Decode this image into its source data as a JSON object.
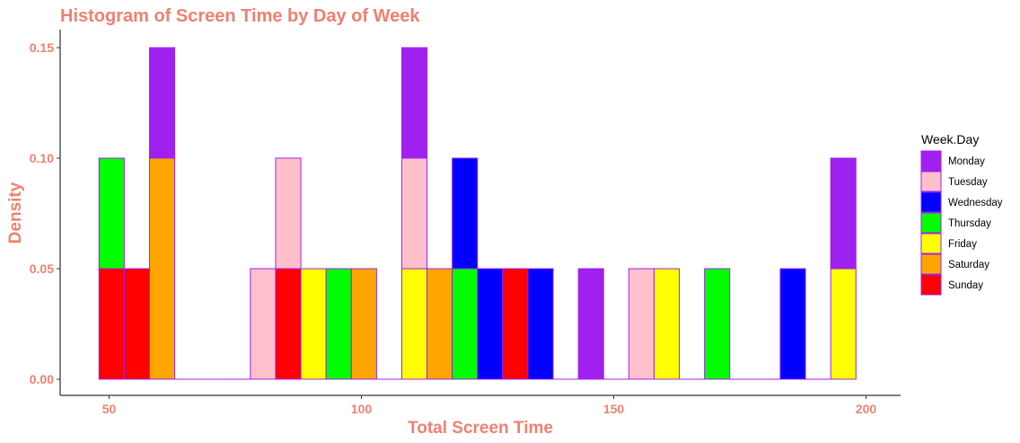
{
  "chart_data": {
    "type": "bar",
    "subtype": "stacked-histogram",
    "title": "Histogram of Screen Time by Day of Week",
    "xlabel": "Total Screen Time",
    "ylabel": "Density",
    "xlim": [
      40,
      205
    ],
    "ylim": [
      0,
      0.15
    ],
    "x_ticks": [
      50,
      100,
      150,
      200
    ],
    "x_tick_labels": [
      "50",
      "100",
      "150",
      "200"
    ],
    "y_ticks": [
      0,
      0.05,
      0.1,
      0.15
    ],
    "y_tick_labels": [
      "0.00",
      "0.05",
      "0.10",
      "0.15"
    ],
    "bin_width": 5,
    "bin_starts": [
      48,
      53,
      58,
      63,
      68,
      73,
      78,
      83,
      88,
      93,
      98,
      103,
      108,
      113,
      118,
      123,
      128,
      133,
      138,
      143,
      148,
      153,
      158,
      163,
      168,
      173,
      178,
      183,
      188,
      193
    ],
    "legend": {
      "title": "Week.Day",
      "position": "right"
    },
    "grid": false,
    "text_color": "#F08070",
    "bar_outline_color": "#A020F0",
    "series": [
      {
        "name": "Monday",
        "color": "#A020F0",
        "values": [
          0,
          0,
          0.05,
          0,
          0,
          0,
          0,
          0,
          0,
          0,
          0,
          0,
          0.05,
          0,
          0,
          0,
          0,
          0,
          0,
          0.05,
          0,
          0,
          0,
          0,
          0,
          0,
          0,
          0,
          0,
          0.05
        ]
      },
      {
        "name": "Tuesday",
        "color": "#FFC0CB",
        "values": [
          0,
          0,
          0,
          0,
          0,
          0,
          0.05,
          0.05,
          0,
          0,
          0,
          0,
          0.05,
          0,
          0,
          0,
          0,
          0,
          0,
          0,
          0,
          0.05,
          0,
          0,
          0,
          0,
          0,
          0,
          0,
          0
        ]
      },
      {
        "name": "Wednesday",
        "color": "#0000FF",
        "values": [
          0,
          0,
          0,
          0,
          0,
          0,
          0,
          0,
          0,
          0,
          0,
          0,
          0,
          0,
          0.05,
          0.05,
          0,
          0.05,
          0,
          0,
          0,
          0,
          0,
          0,
          0,
          0,
          0,
          0.05,
          0,
          0
        ]
      },
      {
        "name": "Thursday",
        "color": "#00FF00",
        "values": [
          0.05,
          0,
          0,
          0,
          0,
          0,
          0,
          0,
          0,
          0.05,
          0,
          0,
          0,
          0,
          0.05,
          0,
          0,
          0,
          0,
          0,
          0,
          0,
          0,
          0,
          0.05,
          0,
          0,
          0,
          0,
          0
        ]
      },
      {
        "name": "Friday",
        "color": "#FFFF00",
        "values": [
          0,
          0,
          0,
          0,
          0,
          0,
          0,
          0,
          0.05,
          0,
          0,
          0,
          0.05,
          0,
          0,
          0,
          0,
          0,
          0,
          0,
          0,
          0,
          0.05,
          0,
          0,
          0,
          0,
          0,
          0,
          0.05
        ]
      },
      {
        "name": "Saturday",
        "color": "#FFA500",
        "values": [
          0,
          0,
          0.1,
          0,
          0,
          0,
          0,
          0,
          0,
          0,
          0.05,
          0,
          0,
          0.05,
          0,
          0,
          0,
          0,
          0,
          0,
          0,
          0,
          0,
          0,
          0,
          0,
          0,
          0,
          0,
          0
        ]
      },
      {
        "name": "Sunday",
        "color": "#FF0000",
        "values": [
          0.05,
          0.05,
          0,
          0,
          0,
          0,
          0,
          0.05,
          0,
          0,
          0,
          0,
          0,
          0,
          0,
          0,
          0.05,
          0,
          0,
          0,
          0,
          0,
          0,
          0,
          0,
          0,
          0,
          0,
          0,
          0
        ]
      }
    ]
  }
}
